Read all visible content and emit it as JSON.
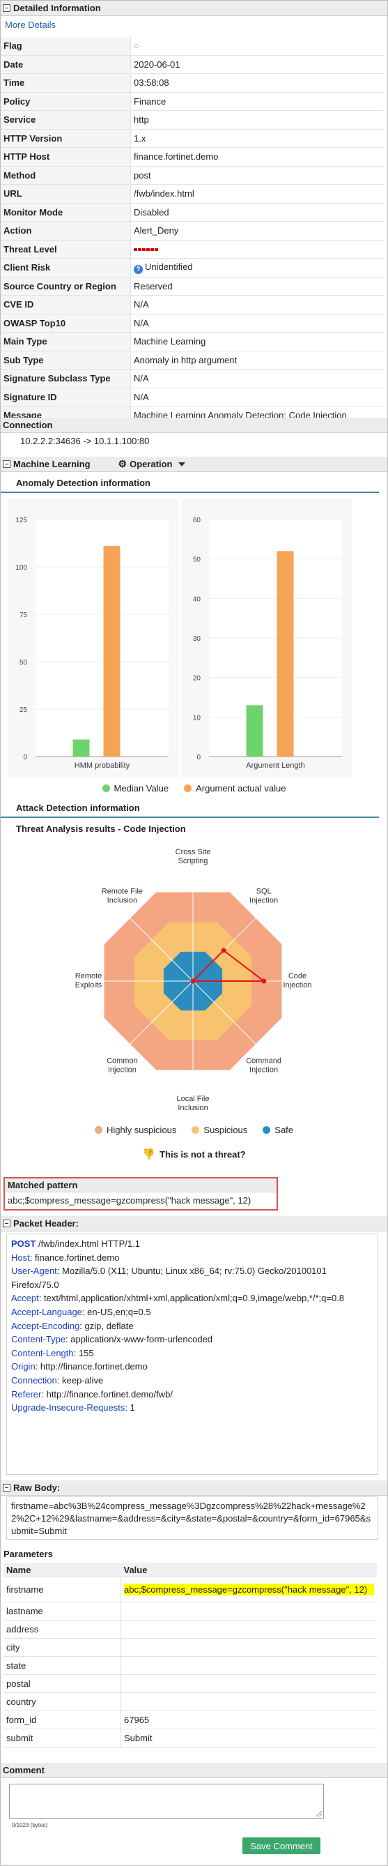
{
  "detailed": {
    "title": "Detailed Information",
    "more_details": "More Details",
    "rows": [
      {
        "k": "Flag",
        "v": "○"
      },
      {
        "k": "Date",
        "v": "2020-06-01"
      },
      {
        "k": "Time",
        "v": "03:58:08"
      },
      {
        "k": "Policy",
        "v": "Finance"
      },
      {
        "k": "Service",
        "v": "http"
      },
      {
        "k": "HTTP Version",
        "v": "1.x"
      },
      {
        "k": "HTTP Host",
        "v": "finance.fortinet.demo"
      },
      {
        "k": "Method",
        "v": "post"
      },
      {
        "k": "URL",
        "v": "/fwb/index.html"
      },
      {
        "k": "Monitor Mode",
        "v": "Disabled"
      },
      {
        "k": "Action",
        "v": "Alert_Deny"
      },
      {
        "k": "Threat Level",
        "v": ""
      },
      {
        "k": "Client Risk",
        "v": "Unidentified"
      },
      {
        "k": "Source Country or Region",
        "v": "Reserved"
      },
      {
        "k": "CVE ID",
        "v": "N/A"
      },
      {
        "k": "OWASP Top10",
        "v": "N/A"
      },
      {
        "k": "Main Type",
        "v": "Machine Learning"
      },
      {
        "k": "Sub Type",
        "v": "Anomaly in http argument"
      },
      {
        "k": "Signature Subclass Type",
        "v": "N/A"
      },
      {
        "k": "Signature ID",
        "v": "N/A"
      },
      {
        "k": "Message",
        "v": "Machine Learning Anomaly Detection: Code Injection"
      }
    ],
    "client_risk_icon": "?"
  },
  "connection": {
    "title": "Connection",
    "value": "10.2.2.2:34636 -> 10.1.1.100:80"
  },
  "ml": {
    "title": "Machine Learning",
    "operation": "Operation",
    "anomaly_title": "Anomaly Detection information",
    "attack_title": "Attack Detection information",
    "threat_title": "Threat Analysis results - Code Injection",
    "not_threat": "This is not a threat?"
  },
  "chart_data": [
    {
      "type": "bar",
      "categories": [
        "HMM probability"
      ],
      "series": [
        {
          "name": "Median Value",
          "values": [
            9
          ],
          "color": "#6dd36d"
        },
        {
          "name": "Argument actual value",
          "values": [
            111
          ],
          "color": "#f7a356"
        }
      ],
      "ylim": [
        0,
        125
      ],
      "yticks": [
        "0",
        "25",
        "50",
        "75",
        "100",
        "125"
      ],
      "legend": "bottom"
    },
    {
      "type": "bar",
      "categories": [
        "Argument Length"
      ],
      "series": [
        {
          "name": "Median Value",
          "values": [
            13
          ],
          "color": "#6dd36d"
        },
        {
          "name": "Argument actual value",
          "values": [
            52
          ],
          "color": "#f7a356"
        }
      ],
      "ylim": [
        0,
        60
      ],
      "yticks": [
        "0",
        "10",
        "20",
        "30",
        "40",
        "50",
        "60"
      ],
      "legend": "bottom"
    },
    {
      "type": "radar",
      "axes": [
        "Cross Site Scripting",
        "SQL Injection",
        "Code Injection",
        "Command Injection",
        "Local File Inclusion",
        "Common Injection",
        "Remote Exploits",
        "Remote File Inclusion"
      ],
      "bands": [
        {
          "name": "Highly suspicious",
          "color": "#f4a582"
        },
        {
          "name": "Suspicious",
          "color": "#f7c36f"
        },
        {
          "name": "Safe",
          "color": "#2b8cbe"
        }
      ],
      "values": [
        0,
        0.55,
        0.9,
        0,
        0,
        0,
        0,
        0
      ],
      "legend": "bottom"
    }
  ],
  "legend": {
    "median": "Median Value",
    "actual": "Argument actual value",
    "highly": "Highly suspicious",
    "suspicious": "Suspicious",
    "safe": "Safe"
  },
  "radar_labels": [
    [
      "Cross Site",
      "Scripting"
    ],
    [
      "SQL",
      "Injection"
    ],
    [
      "Code",
      "Injection"
    ],
    [
      "Command",
      "Injection"
    ],
    [
      "Local File",
      "Inclusion"
    ],
    [
      "Common",
      "Injection"
    ],
    [
      "Remote",
      "Exploits"
    ],
    [
      "Remote File",
      "Inclusion"
    ]
  ],
  "matched": {
    "title": "Matched pattern",
    "value": "abc;$compress_message=gzcompress(\"hack message\", 12)"
  },
  "packet": {
    "title": "Packet Header:",
    "request_method": "POST",
    "request_line": " /fwb/index.html HTTP/1.1",
    "headers": [
      {
        "k": "Host",
        "v": "finance.fortinet.demo"
      },
      {
        "k": "User-Agent",
        "v": "Mozilla/5.0 (X11; Ubuntu; Linux x86_64; rv:75.0) Gecko/20100101 Firefox/75.0"
      },
      {
        "k": "Accept",
        "v": "text/html,application/xhtml+xml,application/xml;q=0.9,image/webp,*/*;q=0.8"
      },
      {
        "k": "Accept-Language",
        "v": "en-US,en;q=0.5"
      },
      {
        "k": "Accept-Encoding",
        "v": "gzip, deflate"
      },
      {
        "k": "Content-Type",
        "v": "application/x-www-form-urlencoded"
      },
      {
        "k": "Content-Length",
        "v": "155"
      },
      {
        "k": "Origin",
        "v": "http://finance.fortinet.demo"
      },
      {
        "k": "Connection",
        "v": "keep-alive"
      },
      {
        "k": "Referer",
        "v": "http://finance.fortinet.demo/fwb/"
      },
      {
        "k": "Upgrade-Insecure-Requests",
        "v": "1"
      }
    ]
  },
  "raw": {
    "title": "Raw Body:",
    "value": "firstname=abc%3B%24compress_message%3Dgzcompress%28%22hack+message%22%2C+12%29&lastname=&address=&city=&state=&postal=&country=&form_id=67965&submit=Submit"
  },
  "params": {
    "title": "Parameters",
    "col_name": "Name",
    "col_value": "Value",
    "rows": [
      {
        "k": "firstname",
        "v": "abc;$compress_message=gzcompress(\"hack message\", 12)",
        "hl": true
      },
      {
        "k": "lastname",
        "v": ""
      },
      {
        "k": "address",
        "v": ""
      },
      {
        "k": "city",
        "v": ""
      },
      {
        "k": "state",
        "v": ""
      },
      {
        "k": "postal",
        "v": ""
      },
      {
        "k": "country",
        "v": ""
      },
      {
        "k": "form_id",
        "v": "67965"
      },
      {
        "k": "submit",
        "v": "Submit"
      }
    ]
  },
  "comment": {
    "title": "Comment",
    "counter": "0/1023 (bytes)",
    "save": "Save Comment"
  }
}
